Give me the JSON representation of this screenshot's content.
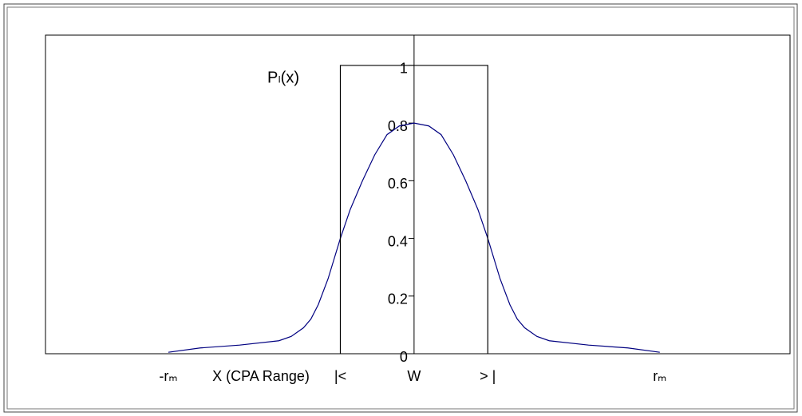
{
  "chart_data": {
    "type": "line",
    "annotation": "Pₗ(x)",
    "x_label": "X (CPA Range)",
    "xlim": [
      -1.5,
      1.53
    ],
    "xticks": [
      {
        "value": -1,
        "label": "-rₘ"
      },
      {
        "value": -0.3,
        "label": "|<"
      },
      {
        "value": 0,
        "label": "W"
      },
      {
        "value": 0.3,
        "label": "> |"
      },
      {
        "value": 1,
        "label": "rₘ"
      }
    ],
    "ylim": [
      0,
      1.105
    ],
    "yticks": [
      0,
      0.2,
      0.4,
      0.6,
      0.8,
      1
    ],
    "series": [
      {
        "color": "#000080",
        "x": [
          -1,
          -0.87,
          -0.71,
          -0.55,
          -0.5,
          -0.45,
          -0.42,
          -0.39,
          -0.35,
          -0.3,
          -0.26,
          -0.21,
          -0.16,
          -0.11,
          -0.06,
          0,
          0.06,
          0.11,
          0.16,
          0.21,
          0.26,
          0.3,
          0.35,
          0.39,
          0.42,
          0.45,
          0.5,
          0.55,
          0.71,
          0.87,
          1
        ],
        "values": [
          0.005,
          0.02,
          0.03,
          0.045,
          0.06,
          0.09,
          0.12,
          0.17,
          0.26,
          0.4,
          0.5,
          0.6,
          0.69,
          0.76,
          0.79,
          0.8,
          0.79,
          0.76,
          0.69,
          0.6,
          0.5,
          0.4,
          0.26,
          0.17,
          0.12,
          0.09,
          0.06,
          0.045,
          0.03,
          0.02,
          0.005
        ]
      },
      {
        "color": "#000000",
        "x": [
          -0.3,
          -0.3,
          0.3,
          0.3
        ],
        "values": [
          0,
          1,
          1,
          0
        ]
      }
    ]
  }
}
